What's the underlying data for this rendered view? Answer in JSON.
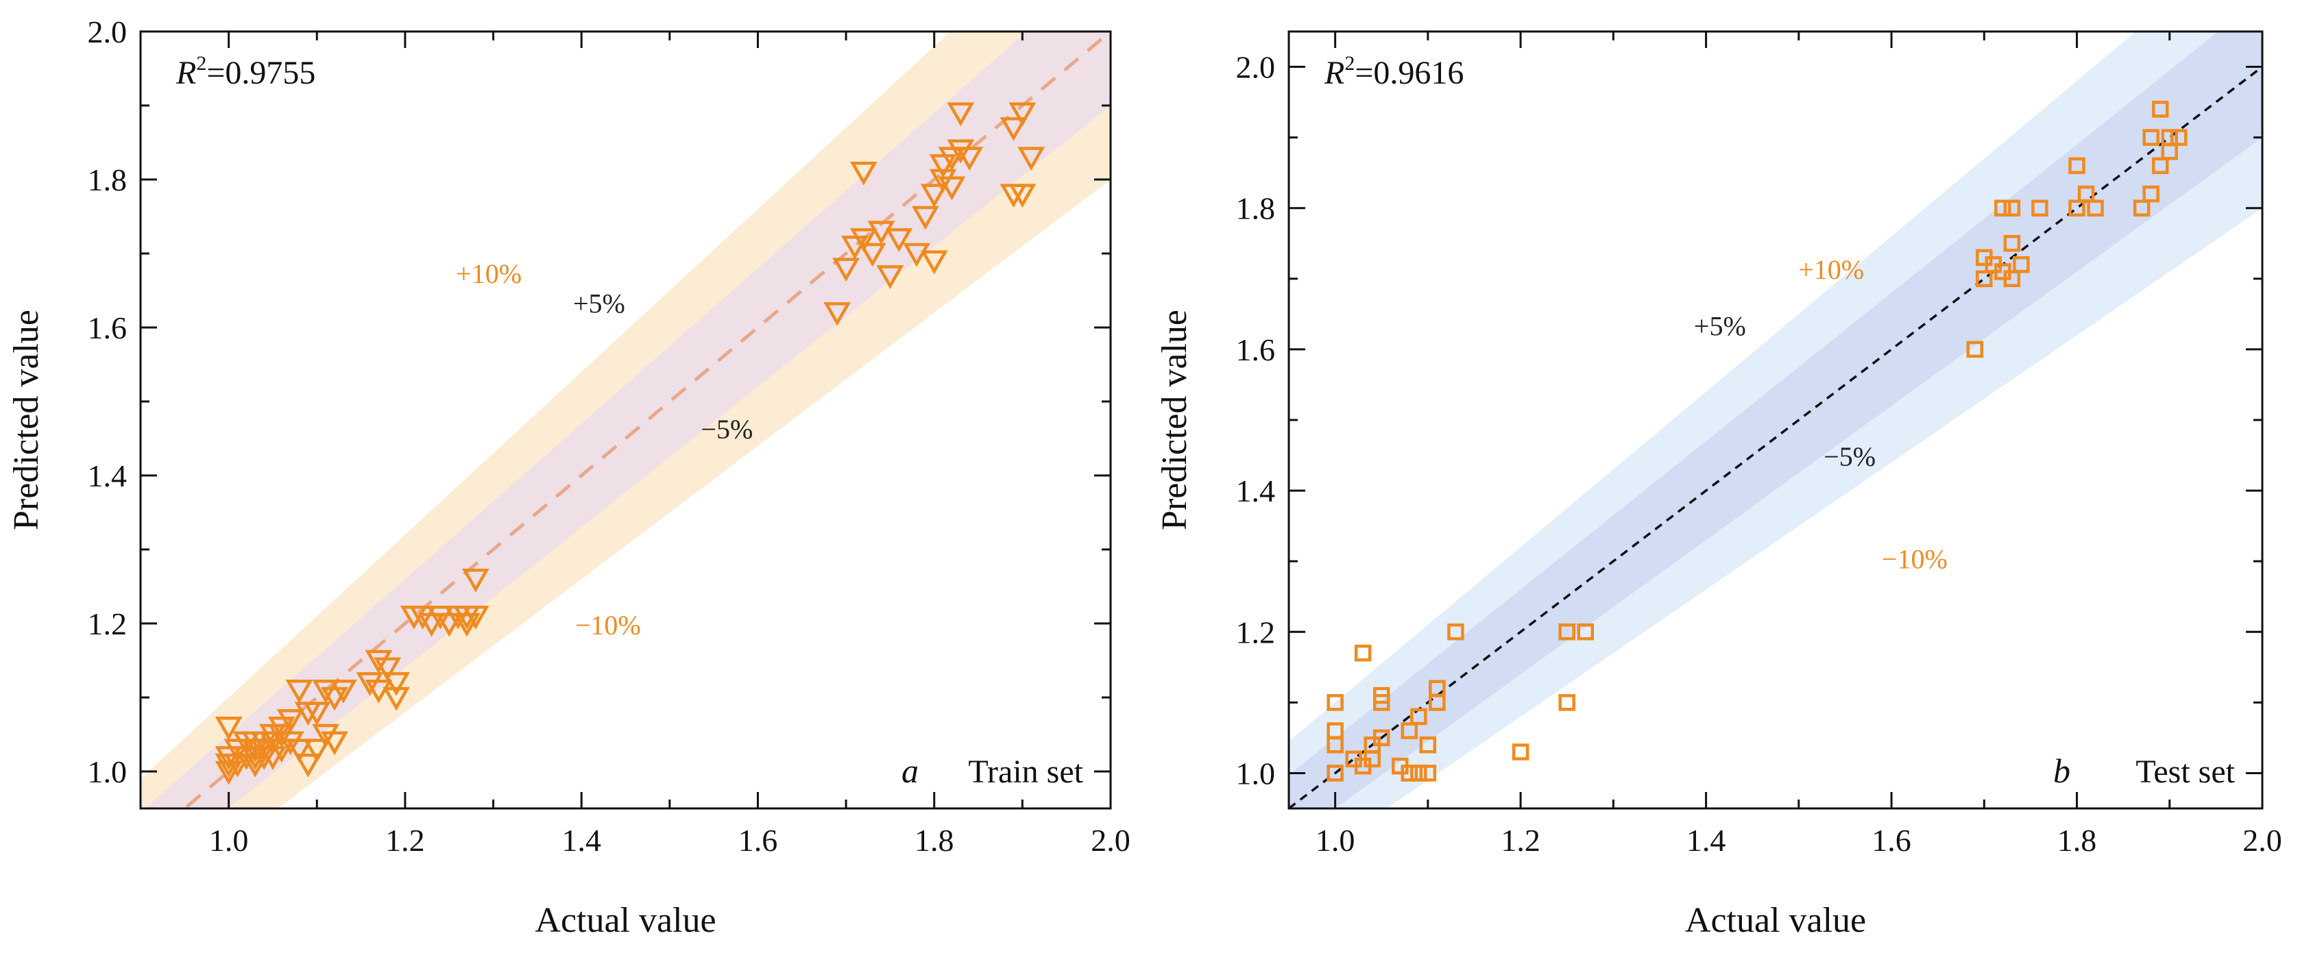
{
  "chart_data": [
    {
      "type": "scatter",
      "panel_label": "a",
      "set_label": "Train set",
      "r2_label": "R",
      "r2_sup": "2",
      "r2_value": "=0.9755",
      "xlabel": "Actual value",
      "ylabel": "Predicted value",
      "xlim": [
        0.9,
        2.0
      ],
      "ylim": [
        0.95,
        2.0
      ],
      "xticks": [
        "1.0",
        "1.2",
        "1.4",
        "1.6",
        "1.8",
        "2.0"
      ],
      "yticks": [
        "1.0",
        "1.2",
        "1.4",
        "1.6",
        "1.8",
        "2.0"
      ],
      "marker": "triangle-down",
      "colors": {
        "marker": "#f08a1e",
        "band10": "#fcecd4",
        "band5": "#eee0e6",
        "diag": "#e8a88a",
        "label10": "#f08a1e",
        "label5": "#222222"
      },
      "band_labels": {
        "plus10": "+10%",
        "plus5": "+5%",
        "minus5": "−5%",
        "minus10": "−10%"
      },
      "points": [
        [
          1.0,
          1.0
        ],
        [
          1.0,
          1.01
        ],
        [
          1.0,
          1.02
        ],
        [
          1.0,
          1.06
        ],
        [
          1.01,
          1.01
        ],
        [
          1.01,
          1.03
        ],
        [
          1.02,
          1.02
        ],
        [
          1.02,
          1.04
        ],
        [
          1.03,
          1.01
        ],
        [
          1.03,
          1.02
        ],
        [
          1.03,
          1.03
        ],
        [
          1.03,
          1.04
        ],
        [
          1.04,
          1.02
        ],
        [
          1.04,
          1.03
        ],
        [
          1.04,
          1.04
        ],
        [
          1.05,
          1.02
        ],
        [
          1.05,
          1.04
        ],
        [
          1.05,
          1.05
        ],
        [
          1.06,
          1.03
        ],
        [
          1.06,
          1.05
        ],
        [
          1.06,
          1.06
        ],
        [
          1.07,
          1.04
        ],
        [
          1.07,
          1.07
        ],
        [
          1.08,
          1.03
        ],
        [
          1.08,
          1.11
        ],
        [
          1.09,
          1.01
        ],
        [
          1.09,
          1.08
        ],
        [
          1.1,
          1.03
        ],
        [
          1.1,
          1.08
        ],
        [
          1.11,
          1.05
        ],
        [
          1.11,
          1.11
        ],
        [
          1.12,
          1.04
        ],
        [
          1.12,
          1.1
        ],
        [
          1.13,
          1.11
        ],
        [
          1.16,
          1.12
        ],
        [
          1.17,
          1.11
        ],
        [
          1.17,
          1.15
        ],
        [
          1.18,
          1.14
        ],
        [
          1.19,
          1.1
        ],
        [
          1.19,
          1.12
        ],
        [
          1.21,
          1.21
        ],
        [
          1.22,
          1.21
        ],
        [
          1.23,
          1.2
        ],
        [
          1.24,
          1.21
        ],
        [
          1.25,
          1.2
        ],
        [
          1.26,
          1.21
        ],
        [
          1.27,
          1.2
        ],
        [
          1.27,
          1.21
        ],
        [
          1.28,
          1.21
        ],
        [
          1.28,
          1.26
        ],
        [
          1.69,
          1.62
        ],
        [
          1.7,
          1.68
        ],
        [
          1.71,
          1.71
        ],
        [
          1.72,
          1.72
        ],
        [
          1.72,
          1.81
        ],
        [
          1.73,
          1.7
        ],
        [
          1.74,
          1.73
        ],
        [
          1.75,
          1.67
        ],
        [
          1.76,
          1.72
        ],
        [
          1.78,
          1.7
        ],
        [
          1.79,
          1.75
        ],
        [
          1.8,
          1.69
        ],
        [
          1.8,
          1.78
        ],
        [
          1.81,
          1.8
        ],
        [
          1.81,
          1.82
        ],
        [
          1.82,
          1.79
        ],
        [
          1.82,
          1.83
        ],
        [
          1.83,
          1.84
        ],
        [
          1.83,
          1.89
        ],
        [
          1.84,
          1.83
        ],
        [
          1.89,
          1.78
        ],
        [
          1.89,
          1.87
        ],
        [
          1.9,
          1.78
        ],
        [
          1.9,
          1.89
        ],
        [
          1.91,
          1.83
        ]
      ]
    },
    {
      "type": "scatter",
      "panel_label": "b",
      "set_label": "Test set",
      "r2_label": "R",
      "r2_sup": "2",
      "r2_value": "=0.9616",
      "xlabel": "Actual value",
      "ylabel": "Predicted value",
      "xlim": [
        0.95,
        2.0
      ],
      "ylim": [
        0.95,
        2.05
      ],
      "xticks": [
        "1.0",
        "1.2",
        "1.4",
        "1.6",
        "1.8",
        "2.0"
      ],
      "yticks": [
        "1.0",
        "1.2",
        "1.4",
        "1.6",
        "1.8",
        "2.0"
      ],
      "marker": "square",
      "colors": {
        "marker": "#f08a1e",
        "band10": "#e2eefa",
        "band5": "#d2dcf3",
        "diag": "#111111",
        "label10": "#f08a1e",
        "label5": "#222222"
      },
      "band_labels": {
        "plus10": "+10%",
        "plus5": "+5%",
        "minus5": "−5%",
        "minus10": "−10%"
      },
      "points": [
        [
          1.0,
          1.0
        ],
        [
          1.0,
          1.04
        ],
        [
          1.0,
          1.06
        ],
        [
          1.0,
          1.1
        ],
        [
          1.02,
          1.02
        ],
        [
          1.03,
          1.01
        ],
        [
          1.03,
          1.17
        ],
        [
          1.04,
          1.02
        ],
        [
          1.04,
          1.04
        ],
        [
          1.05,
          1.05
        ],
        [
          1.05,
          1.1
        ],
        [
          1.05,
          1.11
        ],
        [
          1.07,
          1.01
        ],
        [
          1.08,
          1.0
        ],
        [
          1.08,
          1.06
        ],
        [
          1.09,
          1.0
        ],
        [
          1.09,
          1.08
        ],
        [
          1.1,
          1.0
        ],
        [
          1.1,
          1.04
        ],
        [
          1.11,
          1.1
        ],
        [
          1.11,
          1.12
        ],
        [
          1.13,
          1.2
        ],
        [
          1.2,
          1.03
        ],
        [
          1.25,
          1.1
        ],
        [
          1.25,
          1.2
        ],
        [
          1.27,
          1.2
        ],
        [
          1.69,
          1.6
        ],
        [
          1.7,
          1.7
        ],
        [
          1.7,
          1.73
        ],
        [
          1.71,
          1.72
        ],
        [
          1.72,
          1.8
        ],
        [
          1.72,
          1.71
        ],
        [
          1.73,
          1.8
        ],
        [
          1.73,
          1.75
        ],
        [
          1.73,
          1.7
        ],
        [
          1.74,
          1.72
        ],
        [
          1.76,
          1.8
        ],
        [
          1.8,
          1.86
        ],
        [
          1.8,
          1.8
        ],
        [
          1.81,
          1.82
        ],
        [
          1.82,
          1.8
        ],
        [
          1.87,
          1.8
        ],
        [
          1.88,
          1.9
        ],
        [
          1.88,
          1.82
        ],
        [
          1.89,
          1.94
        ],
        [
          1.89,
          1.86
        ],
        [
          1.9,
          1.88
        ],
        [
          1.9,
          1.9
        ],
        [
          1.91,
          1.9
        ]
      ]
    }
  ]
}
